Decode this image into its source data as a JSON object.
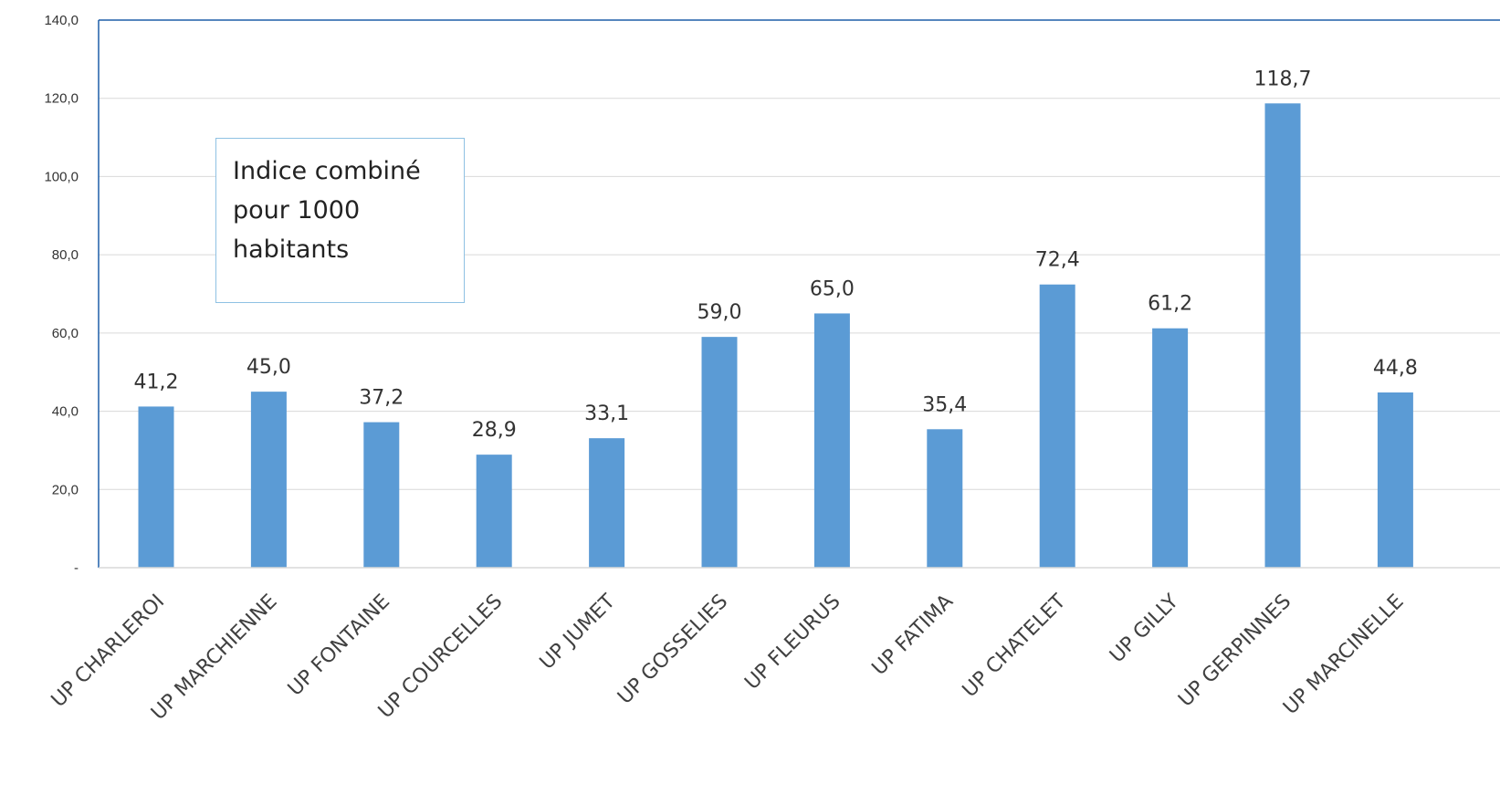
{
  "chart_data": {
    "type": "bar",
    "title": "",
    "xlabel": "",
    "ylabel": "",
    "categories": [
      "UP CHARLEROI",
      "UP MARCHIENNE",
      "UP FONTAINE",
      "UP COURCELLES",
      "UP JUMET",
      "UP GOSSELIES",
      "UP FLEURUS",
      "UP FATIMA",
      "UP CHATELET",
      "UP GILLY",
      "UP GERPINNES",
      "UP MARCINELLE"
    ],
    "values": [
      41.2,
      45.0,
      37.2,
      28.9,
      33.1,
      59.0,
      65.0,
      35.4,
      72.4,
      61.2,
      118.7,
      44.8
    ],
    "data_labels": [
      "41,2",
      "45,0",
      "37,2",
      "28,9",
      "33,1",
      "59,0",
      "65,0",
      "35,4",
      "72,4",
      "61,2",
      "118,7",
      "44,8"
    ],
    "yticks": [
      0,
      20,
      40,
      60,
      80,
      100,
      120,
      140
    ],
    "ytick_labels": [
      "-",
      "20,0",
      "40,0",
      "60,0",
      "80,0",
      "100,0",
      "120,0",
      "140,0"
    ],
    "ylim": [
      0,
      140
    ],
    "grid": true,
    "bar_color": "#5b9bd5",
    "gridline_color": "#d9d9d9",
    "axis_color": "#1f5fa8",
    "annotation": {
      "text": "Indice combiné pour 1000 habitants",
      "position": "upper-left"
    }
  }
}
